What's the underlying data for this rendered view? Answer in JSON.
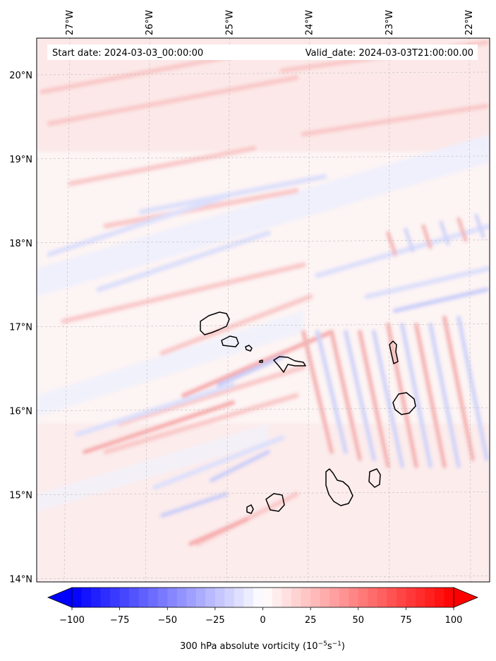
{
  "header": {
    "start_date": "Start date: 2024-03-03_00:00:00",
    "valid_date": "Valid_date: 2024-03-03T21:00:00.00"
  },
  "map": {
    "lon_labels": [
      "27°W",
      "26°W",
      "25°W",
      "24°W",
      "23°W",
      "22°W"
    ],
    "lat_labels": [
      "20°N",
      "19°N",
      "18°N",
      "17°N",
      "16°N",
      "15°N",
      "14°N"
    ],
    "lon_values": [
      -27,
      -26,
      -25,
      -24,
      -23,
      -22
    ],
    "lat_values": [
      20,
      19,
      18,
      17,
      16,
      15,
      14
    ],
    "gridlines": true,
    "features": [
      "Santo Antão",
      "São Vicente",
      "Santa Luzia",
      "São Nicolau",
      "Sal",
      "Boa Vista",
      "Maio",
      "Santiago",
      "Fogo",
      "Brava"
    ]
  },
  "colorbar": {
    "ticks": [
      "−100",
      "−75",
      "−50",
      "−25",
      "0",
      "25",
      "50",
      "75",
      "100"
    ],
    "tick_values": [
      -100,
      -75,
      -50,
      -25,
      0,
      25,
      50,
      75,
      100
    ],
    "vmin": -100,
    "vmax": 100,
    "extend": "both",
    "label_prefix": "300 hPa absolute vorticity (10",
    "label_exp1": "−5",
    "label_mid": "s",
    "label_exp2": "−1",
    "label_suffix": ")",
    "colors": {
      "min": "#0000ff",
      "mid": "#ffffff",
      "max": "#ff0000"
    }
  }
}
